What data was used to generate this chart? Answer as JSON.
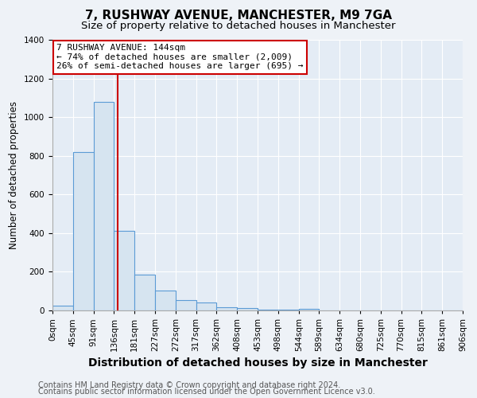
{
  "title1": "7, RUSHWAY AVENUE, MANCHESTER, M9 7GA",
  "title2": "Size of property relative to detached houses in Manchester",
  "xlabel": "Distribution of detached houses by size in Manchester",
  "ylabel": "Number of detached properties",
  "annotation_line1": "7 RUSHWAY AVENUE: 144sqm",
  "annotation_line2": "← 74% of detached houses are smaller (2,009)",
  "annotation_line3": "26% of semi-detached houses are larger (695) →",
  "footnote1": "Contains HM Land Registry data © Crown copyright and database right 2024.",
  "footnote2": "Contains public sector information licensed under the Open Government Licence v3.0.",
  "bar_edges": [
    0,
    45,
    91,
    136,
    181,
    227,
    272,
    317,
    362,
    408,
    453,
    498,
    544,
    589,
    634,
    680,
    725,
    770,
    815,
    861,
    906
  ],
  "bar_heights": [
    25,
    820,
    1080,
    410,
    185,
    105,
    55,
    40,
    18,
    12,
    5,
    3,
    10,
    1,
    1,
    1,
    0,
    0,
    0,
    0
  ],
  "red_line_x": 144,
  "bar_color": "#d6e4f0",
  "bar_edge_color": "#5b9bd5",
  "red_line_color": "#cc0000",
  "annotation_box_color": "#ffffff",
  "annotation_box_edge": "#cc0000",
  "ylim": [
    0,
    1400
  ],
  "yticks": [
    0,
    200,
    400,
    600,
    800,
    1000,
    1200,
    1400
  ],
  "bg_color": "#eef2f7",
  "plot_bg_color": "#e4ecf5",
  "title1_fontsize": 11,
  "title2_fontsize": 9.5,
  "xlabel_fontsize": 10,
  "ylabel_fontsize": 8.5,
  "tick_fontsize": 7.5,
  "footnote_fontsize": 7
}
